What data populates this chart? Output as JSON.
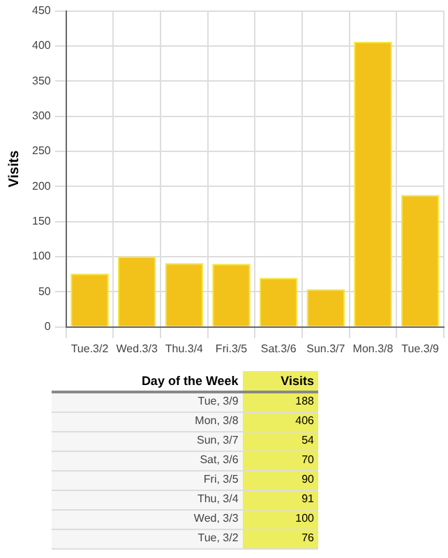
{
  "chart_data": [
    {
      "type": "bar",
      "ylabel": "Visits",
      "categories": [
        "Tue.3/2",
        "Wed.3/3",
        "Thu.3/4",
        "Fri.3/5",
        "Sat.3/6",
        "Sun.3/7",
        "Mon.3/8",
        "Tue.3/9"
      ],
      "values": [
        76,
        100,
        91,
        90,
        70,
        54,
        406,
        188
      ],
      "color": "#f2c21a",
      "ylim": [
        0,
        450
      ],
      "yticks": [
        0,
        50,
        100,
        150,
        200,
        250,
        300,
        350,
        400,
        450
      ],
      "grid": true,
      "legend": false
    },
    {
      "type": "other",
      "annotations": [
        "Day of the Week",
        "Visits"
      ],
      "categories": [
        "Tue, 3/9",
        "Mon, 3/8",
        "Sun, 3/7",
        "Sat, 3/6",
        "Fri, 3/5",
        "Thu, 3/4",
        "Wed, 3/3",
        "Tue, 3/2"
      ],
      "values": [
        188,
        406,
        54,
        70,
        90,
        91,
        100,
        76
      ],
      "data_labels": true,
      "color": "#eded60"
    }
  ]
}
